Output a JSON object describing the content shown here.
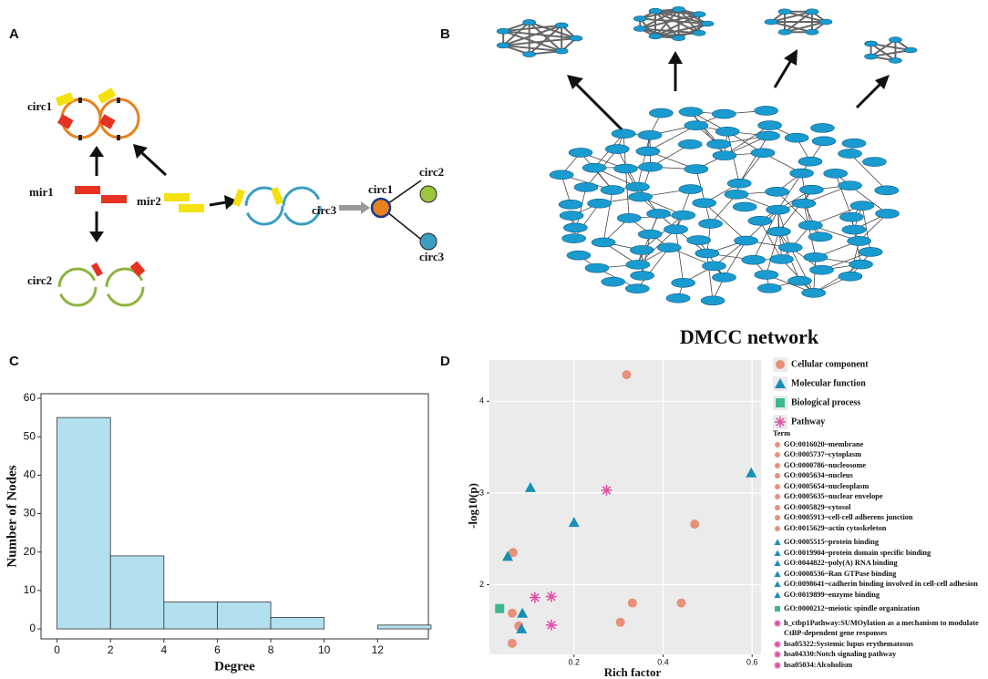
{
  "panel_labels": [
    "A",
    "B",
    "C",
    "D"
  ],
  "diagram_a": {
    "labels": [
      "circ1",
      "mir1",
      "mir2",
      "circ3",
      "circ1",
      "circ2",
      "circ3",
      "circ2"
    ]
  },
  "network_b": {
    "title": "DMCC network"
  },
  "chart_data": [
    {
      "type": "histogram",
      "xlabel": "Degree",
      "ylabel": "Number of Nodes",
      "bins": [
        0,
        2,
        4,
        6,
        8,
        10,
        12,
        14
      ],
      "values": [
        55,
        19,
        7,
        7,
        3,
        0,
        1
      ],
      "color": "#b3e0ef",
      "xlim": [
        -0.6,
        13.9
      ],
      "xticks": [
        0,
        2,
        4,
        6,
        8,
        10,
        12
      ],
      "ylim": [
        -2.6,
        61.2
      ],
      "yticks": [
        0,
        10,
        20,
        30,
        40,
        50,
        60
      ]
    },
    {
      "type": "scatter",
      "xlabel": "Rich factor",
      "ylabel": "-log10(p)",
      "xlim": [
        0.01,
        0.62
      ],
      "xticks": [
        0.2,
        0.4,
        0.6
      ],
      "ylim": [
        1.24,
        4.45
      ],
      "yticks": [
        2,
        3,
        4
      ],
      "grid": true,
      "term_title": "Term",
      "series": [
        {
          "name": "Cellular component",
          "color": "#e8917a",
          "marker": "circle",
          "x": [
            0.318,
            0.063,
            0.471,
            0.331,
            0.441,
            0.304,
            0.061,
            0.076,
            0.061
          ],
          "values": [
            4.29,
            2.35,
            2.66,
            1.8,
            1.8,
            1.59,
            1.69,
            1.55,
            1.36
          ],
          "terms": [
            "GO:0016020~membrane",
            "GO:0005737~cytoplasm",
            "GO:0000786~nucleosome",
            "GO:0005634~nucleus",
            "GO:0005654~nucleoplasm",
            "GO:0005635~nuclear envelope",
            "GO:0005829~cytosol",
            "GO:0005913~cell-cell adherens junction",
            "GO:0015629~actin cytoskeleton"
          ]
        },
        {
          "name": "Molecular function",
          "color": "#1a8fb5",
          "marker": "triangle",
          "x": [
            0.102,
            0.2,
            0.598,
            0.051,
            0.084,
            0.082
          ],
          "values": [
            3.06,
            2.68,
            3.22,
            2.31,
            1.69,
            1.52
          ],
          "terms": [
            "GO:0005515~protein binding",
            "GO:0019904~protein domain specific binding",
            "GO:0044822~poly(A) RNA binding",
            "GO:0008536~Ran GTPase binding",
            "GO:0098641~cadherin binding involved in cell-cell adhesion",
            "GO:0019899~enzyme binding"
          ]
        },
        {
          "name": "Biological process",
          "color": "#3cb98c",
          "marker": "square",
          "x": [
            0.033
          ],
          "values": [
            1.74
          ],
          "terms": [
            "GO:0000212~meiotic spindle organization"
          ]
        },
        {
          "name": "Pathway",
          "color": "#e055a8",
          "marker": "star",
          "x": [
            0.273,
            0.112,
            0.149,
            0.149
          ],
          "values": [
            3.03,
            1.86,
            1.87,
            1.56
          ],
          "terms": [
            "h_ctbp1Pathway:SUMOylation as a mechanism to modulate CtBP-dependent gene responses",
            "hsa05322:Systemic lupus erythematosus",
            "hsa04330:Notch signaling pathway",
            "hsa05034:Alcoholism"
          ]
        }
      ]
    }
  ]
}
